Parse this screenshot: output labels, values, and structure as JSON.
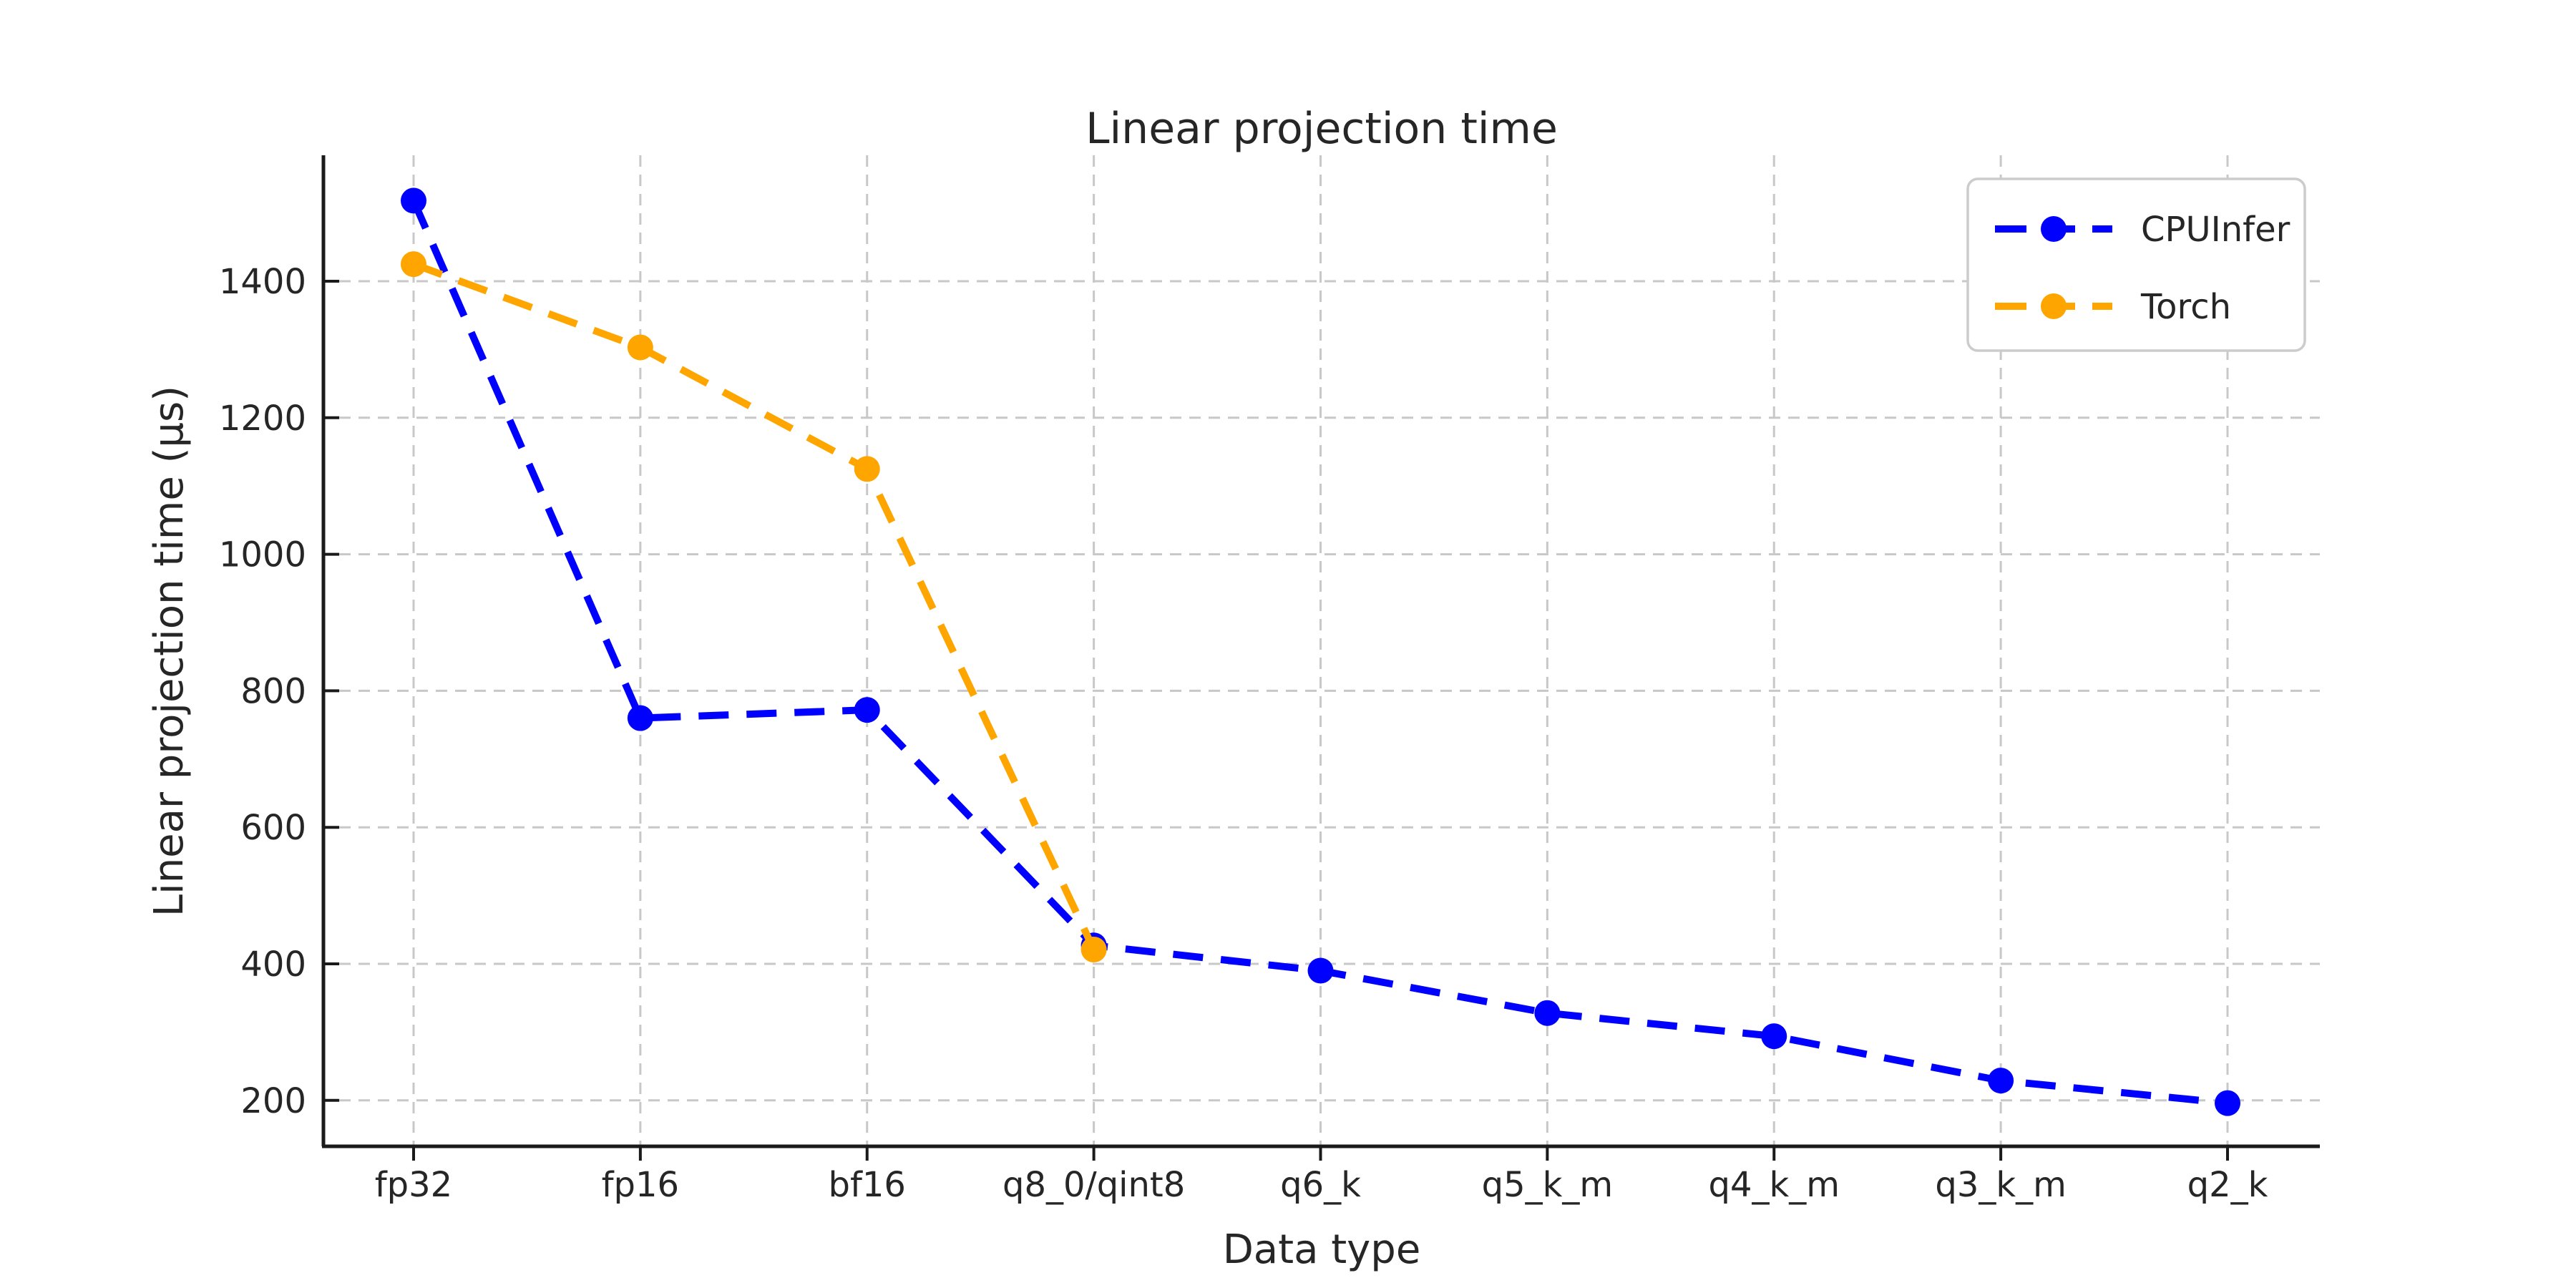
{
  "figure": {
    "title": "Linear projection time",
    "xlabel": "Data type",
    "ylabel": "Linear projection time (μs)",
    "background": "#ffffff",
    "text_color": "#262626",
    "spine_color": "#1a1a1a",
    "grid_color": "#c8c8c8",
    "legend_border_color": "#cccccc"
  },
  "legend": {
    "position": "upper right",
    "entries": [
      {
        "label": "CPUInfer",
        "color": "#0000ff"
      },
      {
        "label": "Torch",
        "color": "#ffa500"
      }
    ]
  },
  "chart_data": {
    "type": "line",
    "title": "Linear projection time",
    "xlabel": "Data type",
    "ylabel": "Linear projection time (μs)",
    "categories": [
      "fp32",
      "fp16",
      "bf16",
      "q8_0/qint8",
      "q6_k",
      "q5_k_m",
      "q4_k_m",
      "q3_k_m",
      "q2_k"
    ],
    "series": [
      {
        "name": "CPUInfer",
        "color": "#0000ff",
        "linestyle": "dashed",
        "marker": "circle",
        "values": [
          1518,
          760,
          772,
          427,
          390,
          328,
          294,
          229,
          196
        ]
      },
      {
        "name": "Torch",
        "color": "#ffa500",
        "linestyle": "dashed",
        "marker": "circle",
        "values": [
          1425,
          1303,
          1125,
          421,
          null,
          null,
          null,
          null,
          null
        ]
      }
    ],
    "yticks": [
      200,
      400,
      600,
      800,
      1000,
      1200,
      1400
    ],
    "ylim": [
      133,
      1584
    ],
    "grid": true,
    "grid_style": "dashed",
    "legend_position": "upper right"
  }
}
